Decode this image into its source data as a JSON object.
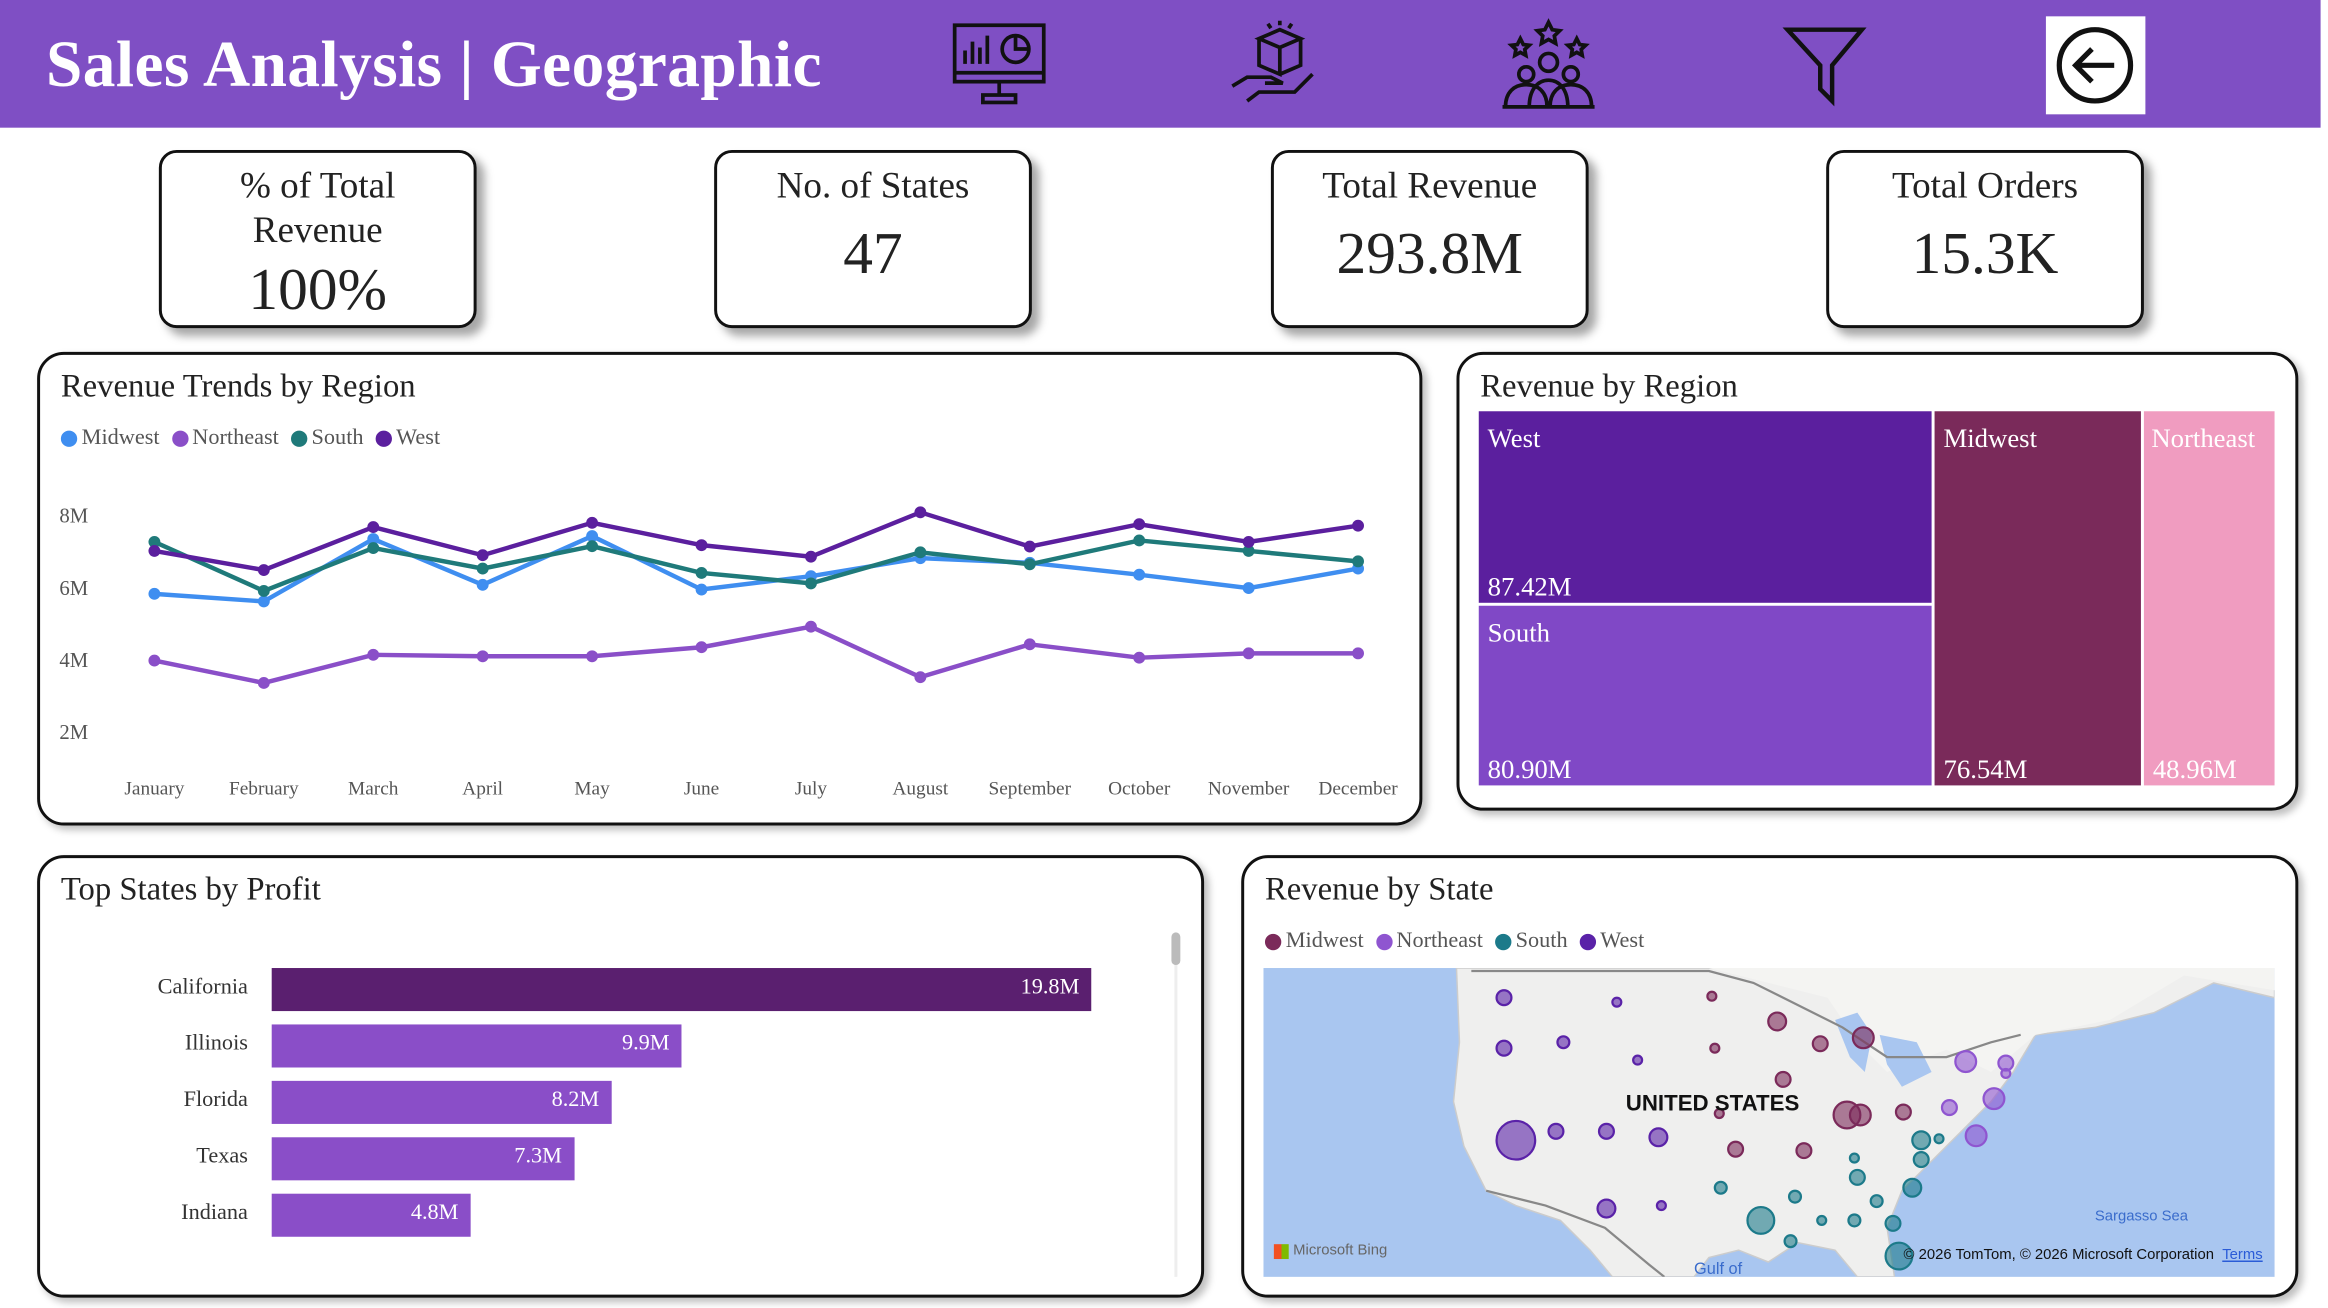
{
  "header": {
    "title": "Sales Analysis | Geographic",
    "icons": [
      "dashboard-monitor-icon",
      "product-hand-icon",
      "customers-rating-icon",
      "filter-icon",
      "back-arrow-icon"
    ]
  },
  "kpis": [
    {
      "label": "% of Total Revenue",
      "value": "100%"
    },
    {
      "label": "No. of States",
      "value": "47"
    },
    {
      "label": "Total Revenue",
      "value": "293.8M"
    },
    {
      "label": "Total Orders",
      "value": "15.3K"
    }
  ],
  "colors": {
    "header": "#7f4fc4",
    "midwest_line": "#3f8ef0",
    "northeast_line": "#8a4fc8",
    "south_line": "#1f7a7a",
    "west_line": "#5b1f9e",
    "midwest_map": "#7b2a5a",
    "treemap_northeast": "#f09cc0"
  },
  "chart_data": [
    {
      "type": "line",
      "title": "Revenue Trends by Region",
      "categories": [
        "January",
        "February",
        "March",
        "April",
        "May",
        "June",
        "July",
        "August",
        "September",
        "October",
        "November",
        "December"
      ],
      "yticks": [
        "2M",
        "4M",
        "6M",
        "8M"
      ],
      "ylim": [
        2,
        8.5
      ],
      "ylabel": "",
      "xlabel": "",
      "legend": "top-left",
      "series": [
        {
          "name": "Midwest",
          "color": "#3f8ef0",
          "values": [
            5.82,
            5.61,
            7.34,
            6.07,
            7.42,
            5.94,
            6.31,
            6.81,
            6.68,
            6.35,
            5.98,
            6.52
          ]
        },
        {
          "name": "Northeast",
          "color": "#8a4fc8",
          "values": [
            3.97,
            3.35,
            4.13,
            4.09,
            4.09,
            4.34,
            4.91,
            3.51,
            4.42,
            4.05,
            4.17,
            4.17
          ]
        },
        {
          "name": "South",
          "color": "#1f7a7a",
          "values": [
            7.26,
            5.9,
            7.09,
            6.52,
            7.14,
            6.4,
            6.11,
            6.97,
            6.64,
            7.3,
            7.01,
            6.72
          ]
        },
        {
          "name": "West",
          "color": "#5b1f9e",
          "values": [
            7.01,
            6.48,
            7.67,
            6.89,
            7.79,
            7.17,
            6.85,
            8.08,
            7.13,
            7.75,
            7.26,
            7.71
          ]
        }
      ]
    },
    {
      "type": "treemap",
      "title": "Revenue by Region",
      "items": [
        {
          "name": "West",
          "value": 87.42,
          "label": "87.42M",
          "color": "#5b1f9e"
        },
        {
          "name": "South",
          "value": 80.9,
          "label": "80.90M",
          "color": "#8048c6"
        },
        {
          "name": "Midwest",
          "value": 76.54,
          "label": "76.54M",
          "color": "#7a2a5a"
        },
        {
          "name": "Northeast",
          "value": 48.96,
          "label": "48.96M",
          "color": "#f09cc0"
        }
      ]
    },
    {
      "type": "bar",
      "title": "Top States by Profit",
      "categories": [
        "California",
        "Illinois",
        "Florida",
        "Texas",
        "Indiana"
      ],
      "values": [
        19.8,
        9.9,
        8.2,
        7.3,
        4.8
      ],
      "labels": [
        "19.8M",
        "9.9M",
        "8.2M",
        "7.3M",
        "4.8M"
      ]
    },
    {
      "type": "scatter",
      "title": "Revenue by State",
      "legend": [
        {
          "name": "Midwest",
          "color": "#7b2a5a"
        },
        {
          "name": "Northeast",
          "color": "#8f55d0"
        },
        {
          "name": "South",
          "color": "#1c7a8a"
        },
        {
          "name": "West",
          "color": "#5a22a8"
        }
      ],
      "map_label": "UNITED STATES",
      "attribution": "© 2026 TomTom, © 2026 Microsoft Corporation",
      "terms": "Terms",
      "provider": "Microsoft Bing",
      "water_labels": [
        "Gulf of",
        "Sargasso Sea"
      ]
    }
  ]
}
